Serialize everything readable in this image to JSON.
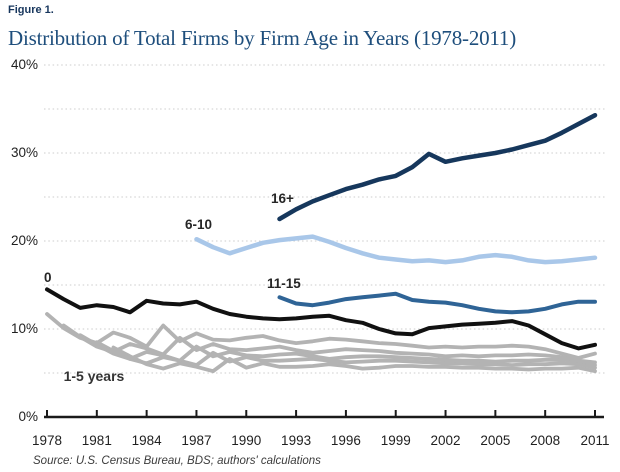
{
  "figure_label": "Figure 1.",
  "title": "Distribution of Total Firms by Firm Age in Years (1978-2011)",
  "source": "Source: U.S. Census Bureau, BDS; authors' calculations",
  "colors": {
    "title_blue": "#1e4e7c",
    "figure_label_blue": "#17365d",
    "grid": "#cccccc",
    "axis": "#1a1a1a",
    "age0_black": "#111111",
    "age1to5_gray": "#b3b3b3",
    "age6to10_lightblue": "#a9c7e9",
    "age11to15_steelblue": "#2f6496",
    "age16plus_navy": "#16375c"
  },
  "chart_data": {
    "type": "line",
    "title": "Distribution of Total Firms by Firm Age in Years (1978-2011)",
    "xlabel": "",
    "ylabel": "",
    "units": "percent of total firms",
    "xlim": [
      1978,
      2011
    ],
    "ylim": [
      0,
      40
    ],
    "grid": "dotted horizontal every 5%",
    "legend_position": "inline labels on lines",
    "x_ticks": [
      1978,
      1981,
      1984,
      1987,
      1990,
      1993,
      1996,
      1999,
      2002,
      2005,
      2008,
      2011
    ],
    "y_ticks": [
      {
        "value": 0,
        "label": "0%"
      },
      {
        "value": 10,
        "label": "10%"
      },
      {
        "value": 20,
        "label": "20%"
      },
      {
        "value": 30,
        "label": "30%"
      },
      {
        "value": 40,
        "label": "40%"
      }
    ],
    "gridlines_percent": [
      5,
      10,
      15,
      20,
      25,
      30,
      35,
      40
    ],
    "series": [
      {
        "name": "age-5",
        "label": "",
        "group": "1-5 years",
        "color": "#b3b3b3",
        "stroke_width": 3.8,
        "start_year": 1982,
        "values": [
          7.9,
          6.9,
          6.0,
          5.5,
          6.1,
          5.7,
          5.2,
          6.6,
          5.6,
          6.1,
          5.7,
          5.7,
          5.8,
          6.0,
          5.8,
          5.5,
          5.6,
          5.8,
          5.8,
          5.7,
          5.7,
          5.6,
          5.6,
          5.5,
          5.5,
          5.4,
          5.5,
          5.5,
          5.6,
          5.2
        ]
      },
      {
        "name": "age-4",
        "label": "",
        "group": "1-5 years",
        "color": "#b3b3b3",
        "stroke_width": 3.8,
        "start_year": 1981,
        "values": [
          8.5,
          7.5,
          6.6,
          6.1,
          6.8,
          6.4,
          5.9,
          7.3,
          6.3,
          6.8,
          6.4,
          6.4,
          6.5,
          6.6,
          6.4,
          6.2,
          6.3,
          6.4,
          6.4,
          6.3,
          6.2,
          6.1,
          6.1,
          6.0,
          6.0,
          5.9,
          6.0,
          6.0,
          6.1,
          6.0,
          5.6
        ]
      },
      {
        "name": "age-3",
        "label": "",
        "group": "1-5 years",
        "color": "#b3b3b3",
        "stroke_width": 3.8,
        "start_year": 1980,
        "values": [
          9.3,
          8.2,
          7.2,
          6.6,
          7.4,
          7.0,
          6.4,
          8.0,
          6.9,
          7.4,
          7.0,
          6.9,
          7.1,
          7.2,
          6.9,
          6.6,
          6.8,
          6.9,
          6.9,
          6.8,
          6.7,
          6.6,
          6.5,
          6.4,
          6.4,
          6.3,
          6.4,
          6.4,
          6.5,
          6.5,
          6.4,
          5.9
        ]
      },
      {
        "name": "age-2",
        "label": "",
        "group": "1-5 years",
        "color": "#b3b3b3",
        "stroke_width": 3.8,
        "start_year": 1979,
        "values": [
          10.4,
          9.1,
          8.0,
          7.4,
          8.3,
          7.8,
          7.1,
          9.0,
          7.6,
          8.3,
          7.7,
          7.6,
          7.8,
          8.0,
          7.6,
          7.3,
          7.5,
          7.7,
          7.6,
          7.5,
          7.3,
          7.2,
          7.1,
          6.9,
          7.0,
          6.9,
          7.0,
          7.0,
          7.1,
          7.0,
          6.8,
          6.4,
          6.2
        ]
      },
      {
        "name": "age-1",
        "label": "",
        "group": "1-5 years",
        "color": "#b3b3b3",
        "stroke_width": 3.8,
        "start_year": 1978,
        "values": [
          11.7,
          10.1,
          9.0,
          8.4,
          9.6,
          9.0,
          8.0,
          10.4,
          8.6,
          9.5,
          8.8,
          8.7,
          9.0,
          9.2,
          8.7,
          8.4,
          8.6,
          8.9,
          8.8,
          8.6,
          8.4,
          8.3,
          8.1,
          7.9,
          8.0,
          7.9,
          8.0,
          8.0,
          8.1,
          8.0,
          7.7,
          7.2,
          6.7,
          7.2
        ]
      },
      {
        "name": "age-0",
        "label": "0",
        "group": "0",
        "color": "#111111",
        "stroke_width": 4,
        "start_year": 1978,
        "values": [
          14.5,
          13.4,
          12.4,
          12.7,
          12.5,
          11.9,
          13.2,
          12.9,
          12.8,
          13.1,
          12.3,
          11.7,
          11.4,
          11.2,
          11.1,
          11.2,
          11.4,
          11.5,
          11.0,
          10.7,
          10.0,
          9.5,
          9.4,
          10.1,
          10.3,
          10.5,
          10.6,
          10.7,
          10.9,
          10.4,
          9.4,
          8.4,
          7.8,
          8.2
        ]
      },
      {
        "name": "age-6-10",
        "label": "6-10",
        "group": "6-10",
        "color": "#a9c7e9",
        "stroke_width": 4.5,
        "start_year": 1987,
        "values": [
          20.2,
          19.3,
          18.6,
          19.2,
          19.8,
          20.1,
          20.3,
          20.5,
          19.9,
          19.2,
          18.6,
          18.1,
          17.9,
          17.7,
          17.8,
          17.6,
          17.8,
          18.2,
          18.4,
          18.2,
          17.8,
          17.6,
          17.7,
          17.9,
          18.1
        ]
      },
      {
        "name": "age-11-15",
        "label": "11-15",
        "group": "11-15",
        "color": "#2f6496",
        "stroke_width": 4,
        "start_year": 1992,
        "values": [
          13.6,
          12.9,
          12.7,
          13.0,
          13.4,
          13.6,
          13.8,
          14.0,
          13.3,
          13.1,
          13.0,
          12.7,
          12.3,
          12.0,
          11.9,
          12.0,
          12.3,
          12.8,
          13.1,
          13.1
        ]
      },
      {
        "name": "age-16plus",
        "label": "16+",
        "group": "16+",
        "color": "#16375c",
        "stroke_width": 4.5,
        "start_year": 1992,
        "values": [
          22.5,
          23.6,
          24.5,
          25.2,
          25.9,
          26.4,
          27.0,
          27.4,
          28.4,
          29.9,
          29.0,
          29.4,
          29.7,
          30.0,
          30.4,
          30.9,
          31.4,
          32.3,
          33.3,
          34.3
        ]
      }
    ],
    "annotations": [
      {
        "text": "1-5 years",
        "year": 1979,
        "value": 4.7
      }
    ]
  }
}
